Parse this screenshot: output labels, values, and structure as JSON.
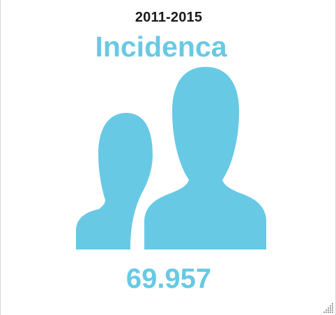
{
  "widget": {
    "period": "2011-2015",
    "title": "Incidenca",
    "value": "69.957",
    "accent_color": "#68c9e5",
    "icon": "people-icon"
  }
}
